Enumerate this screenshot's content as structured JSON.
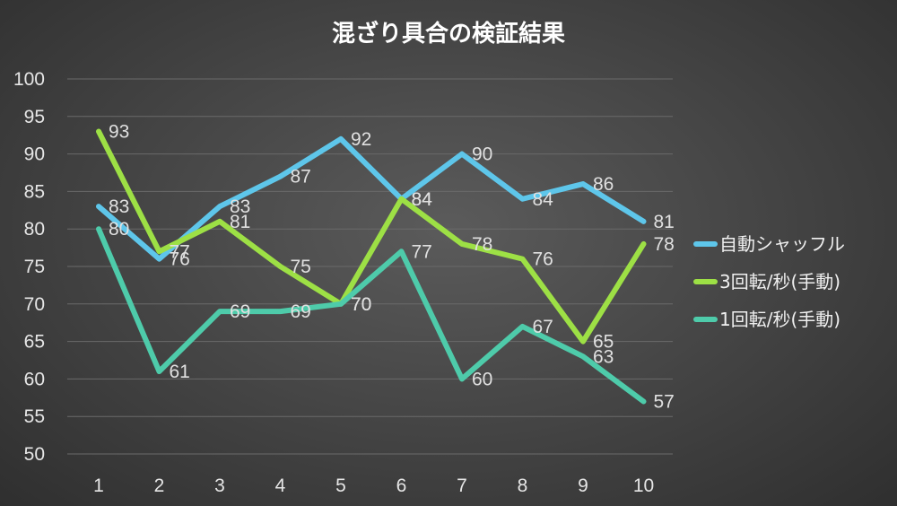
{
  "chart_data": {
    "type": "line",
    "title": "混ざり具合の検証結果",
    "xlabel": "",
    "ylabel": "",
    "categories": [
      "1",
      "2",
      "3",
      "4",
      "5",
      "6",
      "7",
      "8",
      "9",
      "10"
    ],
    "ylim": [
      50,
      100
    ],
    "yticks": [
      "50",
      "55",
      "60",
      "65",
      "70",
      "75",
      "80",
      "85",
      "90",
      "95",
      "100"
    ],
    "grid": true,
    "legend_position": "right",
    "data_labels": true,
    "series": [
      {
        "name": "自動シャッフル",
        "color": "#5ec6ea",
        "values": [
          83,
          76,
          83,
          87,
          92,
          84,
          90,
          84,
          86,
          81
        ]
      },
      {
        "name": "3回転/秒(手動)",
        "color": "#9de045",
        "values": [
          93,
          77,
          81,
          75,
          70,
          84,
          78,
          76,
          65,
          78
        ]
      },
      {
        "name": "1回転/秒(手動)",
        "color": "#4ecbaa",
        "values": [
          80,
          61,
          69,
          69,
          70,
          77,
          60,
          67,
          63,
          57
        ]
      }
    ]
  }
}
